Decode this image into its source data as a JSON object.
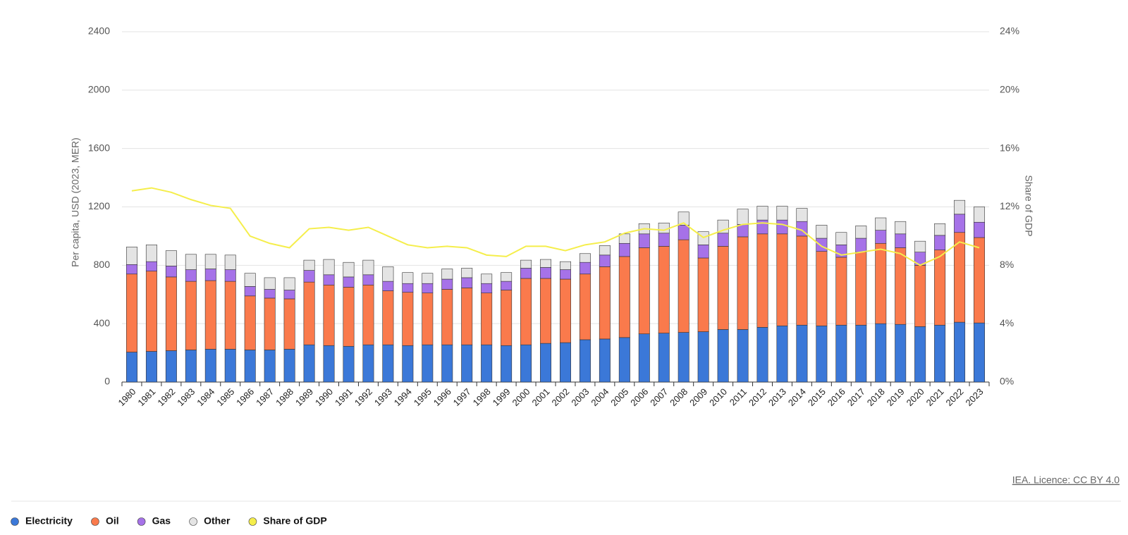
{
  "chart_data": {
    "type": "bar",
    "stacked": true,
    "y_label": "Per capita, USD (2023, MER)",
    "y2_label": "Share of GDP",
    "credit": "IEA. Licence: CC BY 4.0",
    "categories": [
      "1980",
      "1981",
      "1982",
      "1983",
      "1984",
      "1985",
      "1986",
      "1987",
      "1988",
      "1989",
      "1990",
      "1991",
      "1992",
      "1993",
      "1994",
      "1995",
      "1996",
      "1997",
      "1998",
      "1999",
      "2000",
      "2001",
      "2002",
      "2003",
      "2004",
      "2005",
      "2006",
      "2007",
      "2008",
      "2009",
      "2010",
      "2011",
      "2012",
      "2013",
      "2014",
      "2015",
      "2016",
      "2017",
      "2018",
      "2019",
      "2020",
      "2021",
      "2022",
      "2023"
    ],
    "series": [
      {
        "name": "Electricity",
        "color": "#3b78d8",
        "values": [
          205,
          210,
          215,
          220,
          225,
          225,
          220,
          220,
          225,
          255,
          250,
          245,
          255,
          255,
          250,
          255,
          255,
          255,
          255,
          250,
          255,
          265,
          270,
          290,
          295,
          305,
          330,
          335,
          340,
          345,
          360,
          360,
          375,
          385,
          390,
          385,
          390,
          390,
          400,
          395,
          380,
          390,
          410,
          405
        ]
      },
      {
        "name": "Oil",
        "color": "#fa7a4c",
        "values": [
          535,
          550,
          505,
          470,
          470,
          465,
          370,
          355,
          345,
          430,
          415,
          405,
          410,
          370,
          365,
          355,
          380,
          390,
          355,
          380,
          455,
          445,
          435,
          450,
          495,
          555,
          590,
          595,
          635,
          505,
          570,
          635,
          640,
          630,
          610,
          510,
          465,
          500,
          550,
          525,
          420,
          515,
          615,
          585
        ]
      },
      {
        "name": "Gas",
        "color": "#a672e8",
        "values": [
          65,
          65,
          75,
          80,
          80,
          80,
          65,
          60,
          60,
          80,
          70,
          70,
          70,
          65,
          60,
          65,
          70,
          70,
          65,
          60,
          70,
          75,
          65,
          80,
          80,
          90,
          95,
          90,
          100,
          90,
          90,
          85,
          95,
          95,
          100,
          90,
          85,
          95,
          90,
          95,
          90,
          100,
          125,
          105
        ]
      },
      {
        "name": "Other",
        "color": "#e4e4e4",
        "values": [
          120,
          115,
          105,
          105,
          100,
          100,
          90,
          80,
          85,
          70,
          105,
          100,
          100,
          100,
          75,
          70,
          70,
          65,
          65,
          60,
          55,
          55,
          55,
          60,
          65,
          65,
          70,
          70,
          90,
          90,
          90,
          105,
          95,
          95,
          90,
          90,
          85,
          85,
          85,
          85,
          75,
          80,
          95,
          105
        ]
      },
      {
        "name": "Share of GDP",
        "color": "#f5ee4b",
        "type": "line",
        "axis": "y2",
        "values": [
          13.1,
          13.3,
          13.0,
          12.5,
          12.1,
          11.9,
          10.0,
          9.5,
          9.2,
          10.5,
          10.6,
          10.4,
          10.6,
          10.0,
          9.4,
          9.2,
          9.3,
          9.2,
          8.7,
          8.6,
          9.3,
          9.3,
          9.0,
          9.4,
          9.6,
          10.2,
          10.5,
          10.4,
          10.9,
          9.9,
          10.4,
          10.8,
          10.9,
          10.8,
          10.4,
          9.3,
          8.7,
          8.9,
          9.1,
          8.8,
          8.0,
          8.6,
          9.6,
          9.2
        ]
      }
    ],
    "ylim": [
      0,
      2400
    ],
    "yticks": [
      0,
      400,
      800,
      1200,
      1600,
      2000,
      2400
    ],
    "y2lim": [
      0,
      24
    ],
    "y2ticks": [
      {
        "value": 0,
        "label": "0%"
      },
      {
        "value": 4,
        "label": "4%"
      },
      {
        "value": 8,
        "label": "8%"
      },
      {
        "value": 12,
        "label": "12%"
      },
      {
        "value": 16,
        "label": "16%"
      },
      {
        "value": 20,
        "label": "20%"
      },
      {
        "value": 24,
        "label": "24%"
      }
    ],
    "grid": true,
    "legend": "bottom-left"
  }
}
